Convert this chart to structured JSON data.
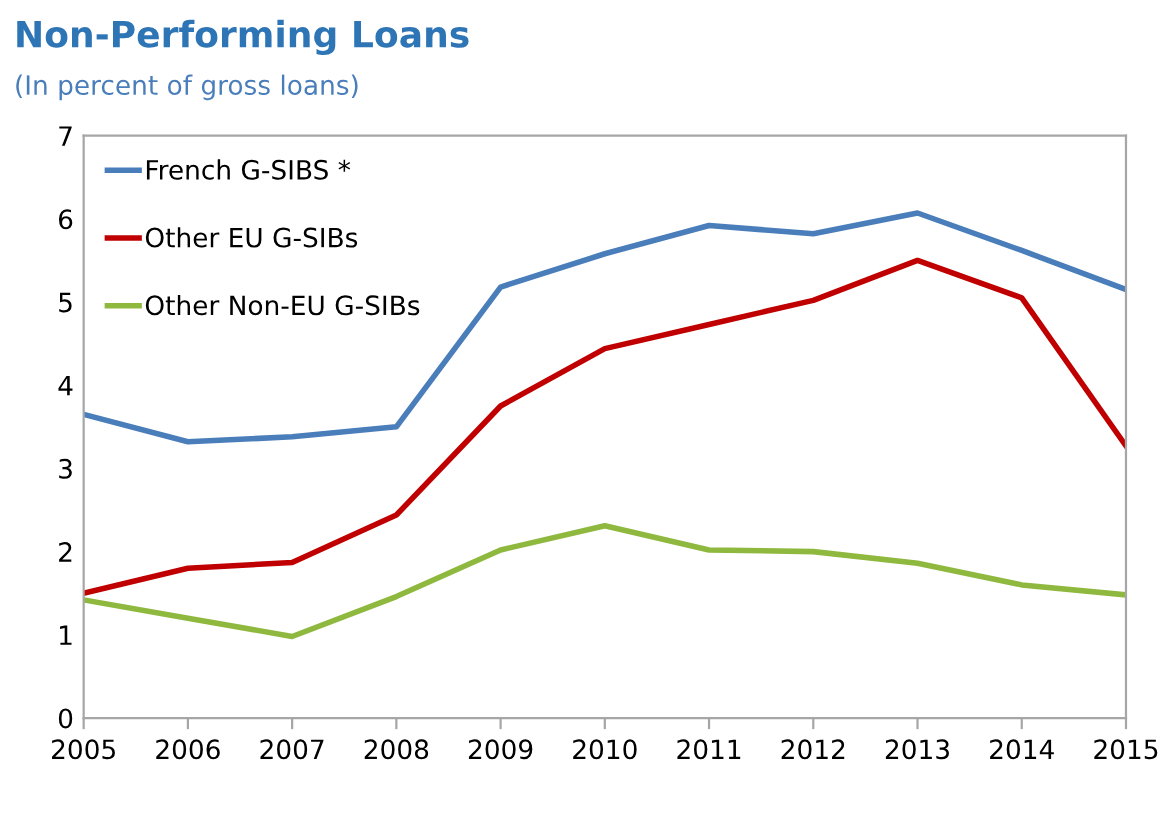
{
  "chart_data": {
    "type": "line",
    "title": "Non-Performing Loans",
    "subtitle": "(In percent of gross loans)",
    "x": [
      2005,
      2006,
      2007,
      2008,
      2009,
      2010,
      2011,
      2012,
      2013,
      2014,
      2015
    ],
    "series": [
      {
        "name": "French G-SIBS *",
        "color": "#4a7ebb",
        "values": [
          3.65,
          3.32,
          3.38,
          3.5,
          5.18,
          5.58,
          5.92,
          5.82,
          6.07,
          5.62,
          5.15
        ]
      },
      {
        "name": "Other EU G-SIBs",
        "color": "#c00000",
        "values": [
          1.5,
          1.8,
          1.87,
          2.44,
          3.75,
          4.44,
          4.73,
          5.02,
          5.5,
          5.05,
          3.27
        ]
      },
      {
        "name": "Other Non-EU G-SIBs",
        "color": "#8fb83f",
        "values": [
          1.42,
          1.2,
          0.98,
          1.46,
          2.02,
          2.31,
          2.02,
          2.0,
          1.86,
          1.6,
          1.48
        ]
      }
    ],
    "xlim": [
      2005,
      2015
    ],
    "xticks": [
      2005,
      2006,
      2007,
      2008,
      2009,
      2010,
      2011,
      2012,
      2013,
      2014,
      2015
    ],
    "ylim": [
      0,
      7
    ],
    "yticks": [
      0,
      1,
      2,
      3,
      4,
      5,
      6,
      7
    ],
    "grid": false,
    "legend": "top left",
    "marker": "none",
    "line_style": "solid"
  }
}
